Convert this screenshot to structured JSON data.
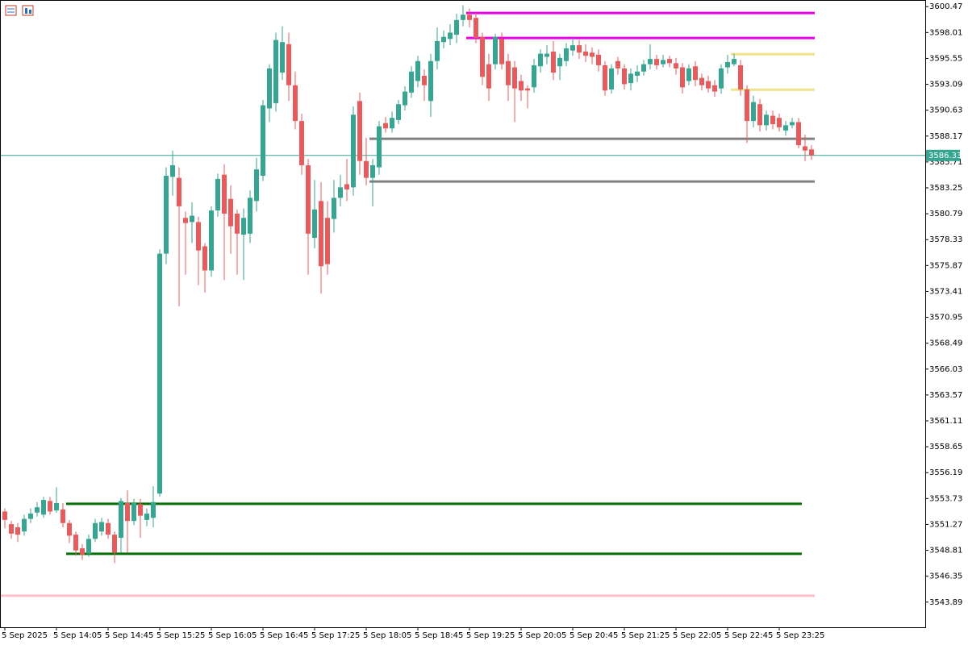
{
  "chart_data": {
    "type": "candlestick",
    "categories": [
      "5 Sep 2025",
      null,
      null,
      null,
      null,
      null,
      null,
      null,
      "5 Sep 14:05",
      null,
      null,
      null,
      null,
      null,
      null,
      null,
      "5 Sep 14:45",
      null,
      null,
      null,
      null,
      null,
      null,
      null,
      "5 Sep 15:25",
      null,
      null,
      null,
      null,
      null,
      null,
      null,
      "5 Sep 16:05",
      null,
      null,
      null,
      null,
      null,
      null,
      null,
      "5 Sep 16:45",
      null,
      null,
      null,
      null,
      null,
      null,
      null,
      "5 Sep 17:25",
      null,
      null,
      null,
      null,
      null,
      null,
      null,
      "5 Sep 18:05",
      null,
      null,
      null,
      null,
      null,
      null,
      null,
      "5 Sep 18:45",
      null,
      null,
      null,
      null,
      null,
      null,
      null,
      "5 Sep 19:25",
      null,
      null,
      null,
      null,
      null,
      null,
      null,
      "5 Sep 20:05",
      null,
      null,
      null,
      null,
      null,
      null,
      null,
      "5 Sep 20:45",
      null,
      null,
      null,
      null,
      null,
      null,
      null,
      "5 Sep 21:25",
      null,
      null,
      null,
      null,
      null,
      null,
      null,
      "5 Sep 22:05",
      null,
      null,
      null,
      null,
      null,
      null,
      null,
      "5 Sep 22:45",
      null,
      null,
      null,
      null,
      null,
      null,
      null,
      "5 Sep 23:25",
      null,
      null,
      null,
      null,
      null
    ],
    "open": [
      3552.5,
      3551.3,
      3551.0,
      3550.6,
      3551.8,
      3552.4,
      3552.2,
      3553.5,
      3552.6,
      3552.7,
      3551.4,
      3550.3,
      3549.0,
      3548.5,
      3549.9,
      3550.6,
      3551.4,
      3550.3,
      3550.0,
      3553.3,
      3551.6,
      3553.2,
      3551.7,
      3551.9,
      3554.2,
      3577.0,
      3584.3,
      3584.2,
      3580.4,
      3580.0,
      3580.0,
      3577.7,
      3575.4,
      3581.1,
      3584.5,
      3582.2,
      3580.8,
      3578.8,
      3578.9,
      3582.0,
      3584.4,
      3590.8,
      3591.3,
      3594.2,
      3596.9,
      3593.0,
      3589.6,
      3585.4,
      3578.5,
      3582.0,
      3580.4,
      3580.3,
      3582.3,
      3583.6,
      3583.3,
      3591.5,
      3585.8,
      3584.2,
      3585.2,
      3589.4,
      3588.9,
      3589.7,
      3591.1,
      3592.3,
      3593.4,
      3593.9,
      3591.5,
      3595.3,
      3597.1,
      3597.4,
      3597.8,
      3599.2,
      3599.7,
      3599.4,
      3597.6,
      3595.0,
      3595.0,
      3597.4,
      3595.3,
      3594.7,
      3593.4,
      3592.7,
      3592.8,
      3594.8,
      3595.7,
      3596.2,
      3594.8,
      3595.3,
      3596.3,
      3596.8,
      3596.2,
      3596.1,
      3595.9,
      3594.9,
      3592.6,
      3595.3,
      3594.6,
      3593.2,
      3593.9,
      3594.3,
      3595.0,
      3595.5,
      3595.0,
      3595.5,
      3595.1,
      3594.7,
      3593.4,
      3594.8,
      3593.7,
      3593.4,
      3593.0,
      3592.7,
      3594.7,
      3595.0,
      3594.9,
      3592.6,
      3589.6,
      3591.2,
      3589.2,
      3590.1,
      3589.9,
      3588.7,
      3589.2,
      3589.5,
      3587.2,
      3586.9
    ],
    "high": [
      3552.8,
      3551.6,
      3551.4,
      3552.2,
      3552.8,
      3553.4,
      3553.9,
      3553.9,
      3554.8,
      3553.3,
      3551.7,
      3550.6,
      3549.4,
      3550.3,
      3551.8,
      3551.9,
      3551.8,
      3550.6,
      3553.8,
      3554.5,
      3553.7,
      3553.7,
      3552.8,
      3554.9,
      3577.4,
      3585.2,
      3586.8,
      3585.2,
      3581.0,
      3581.9,
      3580.5,
      3578.0,
      3581.5,
      3584.6,
      3585.5,
      3583.5,
      3581.2,
      3581.3,
      3583.0,
      3586.1,
      3591.6,
      3595.0,
      3598.0,
      3598.6,
      3598.0,
      3594.3,
      3590.3,
      3586.0,
      3584.0,
      3583.8,
      3582.0,
      3584.0,
      3584.5,
      3586.0,
      3591.0,
      3592.3,
      3588.0,
      3586.0,
      3589.6,
      3590.0,
      3590.5,
      3591.6,
      3592.9,
      3594.8,
      3595.8,
      3594.5,
      3596.0,
      3598.5,
      3598.2,
      3598.8,
      3599.8,
      3600.6,
      3600.3,
      3599.9,
      3598.0,
      3596.0,
      3597.9,
      3598.0,
      3596.0,
      3595.3,
      3594.0,
      3593.0,
      3595.5,
      3596.4,
      3596.8,
      3597.2,
      3596.0,
      3597.0,
      3597.5,
      3597.3,
      3596.9,
      3596.6,
      3596.4,
      3595.3,
      3595.0,
      3595.7,
      3595.0,
      3594.6,
      3594.9,
      3595.4,
      3596.9,
      3595.9,
      3595.9,
      3595.8,
      3595.6,
      3595.1,
      3595.0,
      3595.3,
      3594.1,
      3593.9,
      3593.5,
      3595.0,
      3595.9,
      3596.0,
      3595.4,
      3593.0,
      3592.0,
      3591.7,
      3590.6,
      3590.6,
      3590.3,
      3589.6,
      3589.9,
      3589.9,
      3588.3,
      3587.3
    ],
    "low": [
      3550.9,
      3549.9,
      3549.6,
      3550.2,
      3551.4,
      3552.0,
      3551.9,
      3552.2,
      3552.4,
      3551.0,
      3549.5,
      3548.3,
      3547.9,
      3548.2,
      3549.6,
      3550.2,
      3549.9,
      3547.6,
      3548.6,
      3548.6,
      3551.2,
      3550.0,
      3551.1,
      3551.0,
      3553.9,
      3576.0,
      3582.5,
      3572.0,
      3575.0,
      3578.0,
      3574.0,
      3573.3,
      3574.8,
      3580.5,
      3574.5,
      3577.0,
      3575.0,
      3574.5,
      3578.0,
      3581.0,
      3583.9,
      3589.5,
      3590.5,
      3593.5,
      3591.5,
      3588.8,
      3584.5,
      3575.0,
      3577.5,
      3573.2,
      3575.0,
      3579.0,
      3581.5,
      3582.0,
      3582.5,
      3584.5,
      3583.5,
      3581.5,
      3584.5,
      3588.5,
      3588.5,
      3589.3,
      3590.6,
      3591.8,
      3592.8,
      3591.5,
      3590.0,
      3594.5,
      3596.5,
      3596.8,
      3597.0,
      3598.6,
      3598.5,
      3597.0,
      3593.0,
      3591.5,
      3594.5,
      3594.5,
      3591.5,
      3589.5,
      3591.5,
      3590.8,
      3592.3,
      3594.2,
      3595.0,
      3593.5,
      3593.5,
      3594.8,
      3595.8,
      3595.5,
      3595.2,
      3595.0,
      3594.3,
      3592.0,
      3592.2,
      3594.0,
      3592.6,
      3592.5,
      3593.3,
      3593.9,
      3594.5,
      3594.5,
      3594.7,
      3594.7,
      3594.0,
      3592.2,
      3593.0,
      3592.9,
      3592.5,
      3592.3,
      3591.9,
      3592.2,
      3594.1,
      3594.8,
      3592.0,
      3587.5,
      3589.0,
      3588.6,
      3588.7,
      3588.8,
      3588.6,
      3588.2,
      3588.9,
      3587.0,
      3585.8,
      3585.9
    ],
    "close": [
      3551.7,
      3550.4,
      3550.3,
      3551.8,
      3552.3,
      3552.9,
      3553.6,
      3552.5,
      3553.3,
      3551.4,
      3550.2,
      3548.8,
      3548.4,
      3549.9,
      3551.4,
      3551.5,
      3550.3,
      3548.6,
      3553.5,
      3551.6,
      3553.3,
      3552.1,
      3552.3,
      3553.4,
      3577.0,
      3584.4,
      3585.4,
      3581.5,
      3579.9,
      3580.6,
      3577.3,
      3575.4,
      3581.1,
      3584.1,
      3580.8,
      3579.6,
      3578.9,
      3580.4,
      3582.3,
      3585.0,
      3591.1,
      3594.6,
      3597.3,
      3597.1,
      3593.0,
      3589.6,
      3585.4,
      3578.9,
      3581.2,
      3575.8,
      3576.0,
      3582.3,
      3583.3,
      3583.1,
      3590.2,
      3585.8,
      3584.2,
      3585.4,
      3589.1,
      3588.9,
      3589.9,
      3591.2,
      3592.4,
      3594.3,
      3595.3,
      3593.0,
      3595.3,
      3597.2,
      3597.6,
      3598.0,
      3599.2,
      3599.7,
      3599.2,
      3597.5,
      3593.8,
      3592.7,
      3597.6,
      3595.0,
      3593.0,
      3592.7,
      3592.5,
      3592.5,
      3594.9,
      3596.0,
      3596.0,
      3594.2,
      3595.6,
      3596.5,
      3596.8,
      3596.1,
      3595.8,
      3595.7,
      3594.9,
      3592.5,
      3594.6,
      3594.6,
      3593.1,
      3594.1,
      3594.3,
      3595.0,
      3595.5,
      3594.9,
      3595.4,
      3595.1,
      3594.6,
      3592.8,
      3594.6,
      3593.5,
      3593.0,
      3592.7,
      3592.4,
      3594.6,
      3595.2,
      3595.5,
      3592.6,
      3589.6,
      3591.4,
      3589.2,
      3590.2,
      3589.3,
      3589.0,
      3589.2,
      3589.5,
      3587.3,
      3586.8,
      3586.33
    ],
    "up_color": "#36a591",
    "down_color": "#e95a5c",
    "last_price": 3586.33,
    "last_price_color": "#36a591",
    "levels": [
      {
        "value": 3599.86,
        "color": "#e600e6",
        "start": 72,
        "end": 125
      },
      {
        "value": 3597.49,
        "color": "#e600e6",
        "start": 72,
        "end": 125
      },
      {
        "value": 3595.95,
        "color": "#f0e38a",
        "start": 113,
        "end": 125
      },
      {
        "value": 3592.58,
        "color": "#f0e38a",
        "start": 113,
        "end": 125
      },
      {
        "value": 3587.91,
        "color": "#808080",
        "start": 57,
        "end": 125
      },
      {
        "value": 3583.85,
        "color": "#808080",
        "start": 57,
        "end": 125
      },
      {
        "value": 3553.23,
        "color": "#067006",
        "start": 10,
        "end": 123
      },
      {
        "value": 3548.48,
        "color": "#067006",
        "start": 10,
        "end": 123
      },
      {
        "value": 3544.5,
        "color": "#ffc0cb",
        "start": 0,
        "end": 125
      }
    ],
    "ylim": [
      3541.5,
      3601.1
    ],
    "yticks": [
      3600.47,
      3598.01,
      3595.55,
      3593.09,
      3590.63,
      3588.17,
      3585.71,
      3583.25,
      3580.79,
      3578.33,
      3575.87,
      3573.41,
      3570.95,
      3568.49,
      3566.03,
      3563.57,
      3561.11,
      3558.65,
      3556.19,
      3553.73,
      3551.27,
      3548.81,
      3546.35,
      3543.89
    ]
  }
}
